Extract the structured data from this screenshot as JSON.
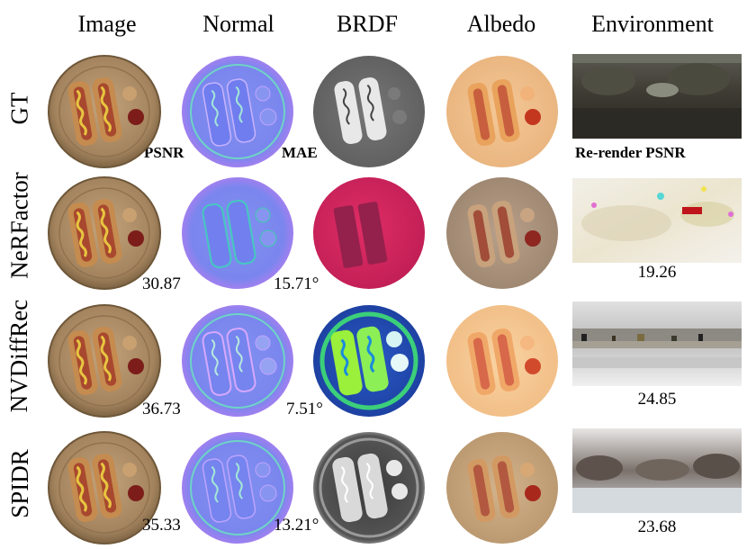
{
  "headers": {
    "image": "Image",
    "normal": "Normal",
    "brdf": "BRDF",
    "albedo": "Albedo",
    "environment": "Environment"
  },
  "labels": {
    "psnr": "PSNR",
    "mae": "MAE",
    "rerender": "Re-render PSNR"
  },
  "rows": [
    {
      "name": "GT",
      "psnr": "",
      "mae": "",
      "env_psnr": ""
    },
    {
      "name": "NeRFactor",
      "psnr": "30.87",
      "mae": "15.71°",
      "env_psnr": "19.26"
    },
    {
      "name": "NVDiffRec",
      "psnr": "36.73",
      "mae": "7.51°",
      "env_psnr": "24.85"
    },
    {
      "name": "SPIDR",
      "psnr": "35.33",
      "mae": "13.21°",
      "env_psnr": "23.68"
    }
  ]
}
